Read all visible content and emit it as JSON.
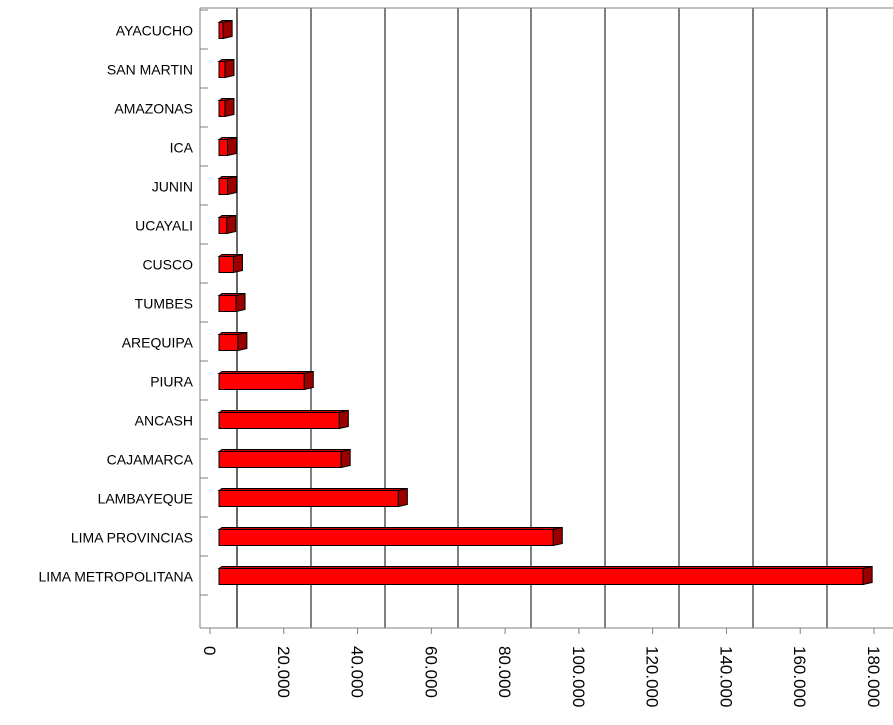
{
  "chart_data": {
    "type": "bar",
    "orientation": "horizontal",
    "categories": [
      "AYACUCHO",
      "SAN MARTIN",
      "AMAZONAS",
      "ICA",
      "JUNIN",
      "UCAYALI",
      "CUSCO",
      "TUMBES",
      "AREQUIPA",
      "PIURA",
      "ANCASH",
      "CAJAMARCA",
      "LAMBAYEQUE",
      "LIMA PROVINCIAS",
      "LIMA METROPOLITANA"
    ],
    "values": [
      6000,
      6500,
      6500,
      7200,
      7200,
      7000,
      8800,
      9500,
      10000,
      28000,
      37500,
      38000,
      53500,
      95500,
      179500
    ],
    "title": "",
    "xlabel": "",
    "ylabel": "",
    "xlim": [
      0,
      180000
    ],
    "x_ticks": [
      0,
      20000,
      40000,
      60000,
      80000,
      100000,
      120000,
      140000,
      160000,
      180000
    ],
    "x_tick_labels": [
      "0",
      "20.000",
      "40.000",
      "60.000",
      "80.000",
      "100.000",
      "120.000",
      "140.000",
      "160.000",
      "180.000"
    ],
    "grid": "vertical lines",
    "legend": "none",
    "colors": {
      "bar_face": "#ff0000",
      "bar_end": "#9b0000",
      "bar_top": "#cc0000",
      "bar_outline": "#000000",
      "grid": "#000000",
      "axis": "#7f7f7f"
    }
  }
}
